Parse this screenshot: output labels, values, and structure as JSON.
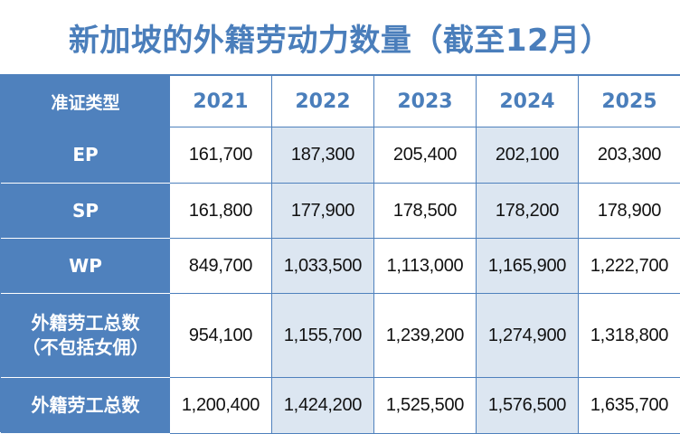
{
  "title": "新加坡的外籍劳动力数量（截至12月）",
  "chart_data": {
    "type": "table",
    "title": "新加坡的外籍劳动力数量（截至12月）",
    "header_label": "准证类型",
    "columns": [
      "2021",
      "2022",
      "2023",
      "2024",
      "2025"
    ],
    "rows": [
      {
        "label": "EP",
        "label_lines": [
          "EP"
        ],
        "values": [
          "161,700",
          "187,300",
          "205,400",
          "202,100",
          "203,300"
        ]
      },
      {
        "label": "SP",
        "label_lines": [
          "SP"
        ],
        "values": [
          "161,800",
          "177,900",
          "178,500",
          "178,200",
          "178,900"
        ]
      },
      {
        "label": "WP",
        "label_lines": [
          "WP"
        ],
        "values": [
          "849,700",
          "1,033,500",
          "1,113,000",
          "1,165,900",
          "1,222,700"
        ]
      },
      {
        "label": "外籍劳工总数（不包括女佣）",
        "label_lines": [
          "外籍劳工总数",
          "（不包括女佣）"
        ],
        "values": [
          "954,100",
          "1,155,700",
          "1,239,200",
          "1,274,900",
          "1,318,800"
        ]
      },
      {
        "label": "外籍劳工总数",
        "label_lines": [
          "外籍劳工总数"
        ],
        "values": [
          "1,200,400",
          "1,424,200",
          "1,525,500",
          "1,576,500",
          "1,635,700"
        ]
      }
    ]
  },
  "colors": {
    "header_blue": "#4f81bd",
    "title_blue": "#4a7ebb",
    "shaded_column": "#dce6f1",
    "text": "#111111"
  }
}
